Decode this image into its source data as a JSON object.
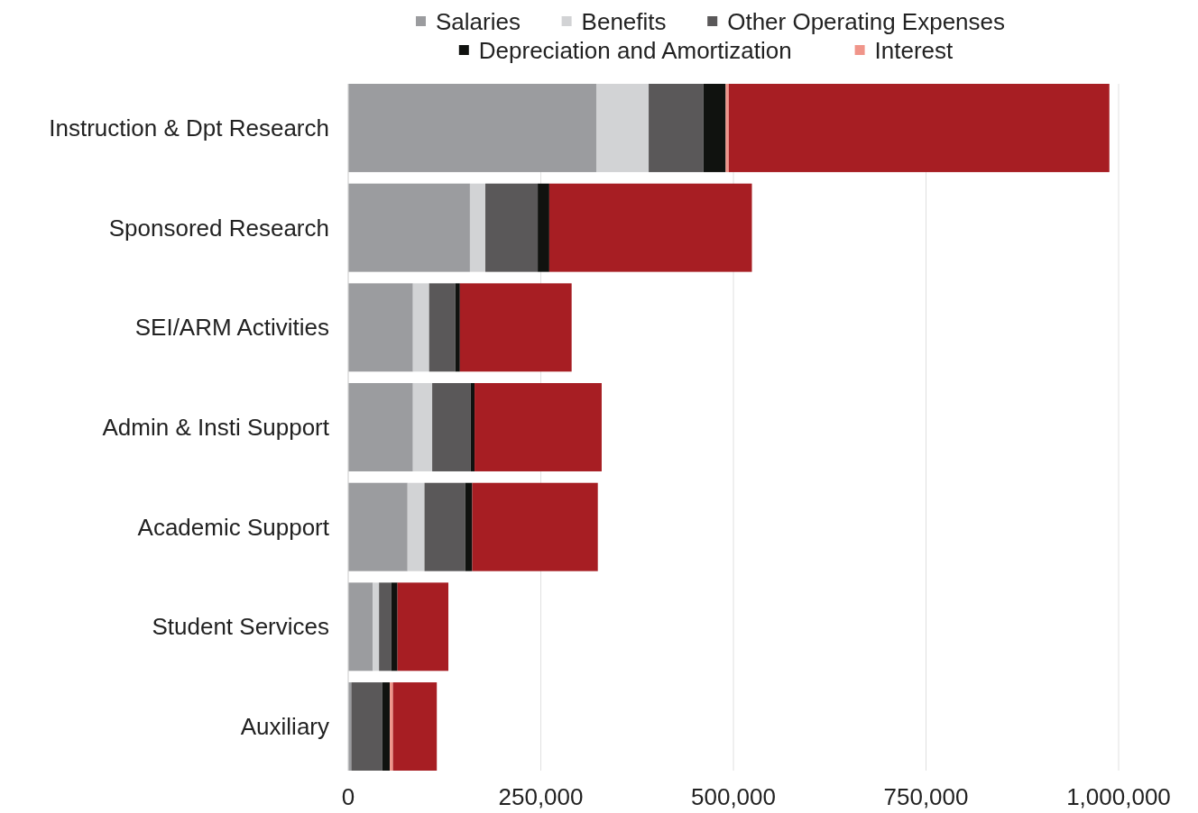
{
  "chart_data": {
    "type": "bar",
    "orientation": "horizontal",
    "stacked": true,
    "categories": [
      "Instruction & Dpt Research",
      "Sponsored Research",
      "SEI/ARM Activities",
      "Admin & Insti Support",
      "Academic Support",
      "Student Services",
      "Auxiliary"
    ],
    "series": [
      {
        "name": "Salaries",
        "color": "#9b9c9f",
        "values": [
          322000,
          158000,
          84000,
          84000,
          77000,
          32000,
          4000
        ]
      },
      {
        "name": "Benefits",
        "color": "#d2d3d5",
        "values": [
          68000,
          20000,
          21000,
          25000,
          22000,
          8000,
          0
        ]
      },
      {
        "name": "Other Operating Expenses",
        "color": "#5a5859",
        "values": [
          71000,
          68000,
          34000,
          50000,
          53000,
          16000,
          40000
        ]
      },
      {
        "name": "Depreciation and Amortization",
        "color": "#10120f",
        "values": [
          29000,
          15000,
          6000,
          5000,
          9000,
          8000,
          10000
        ]
      },
      {
        "name": "Interest",
        "color": "#f0958a",
        "values": [
          4000,
          null,
          null,
          null,
          null,
          null,
          4000
        ]
      },
      {
        "color": "#a71e23",
        "values": [
          494000,
          263000,
          145000,
          165000,
          163000,
          66000,
          57000
        ]
      }
    ],
    "xlim": [
      0,
      1000000
    ],
    "xticks": [
      {
        "value": 0,
        "label": "0"
      },
      {
        "value": 250000,
        "label": "250,000"
      },
      {
        "value": 500000,
        "label": "500,000"
      },
      {
        "value": 750000,
        "label": "750,000"
      },
      {
        "value": 1000000,
        "label": "1,000,000"
      }
    ],
    "grid": "x",
    "legend": "top"
  }
}
